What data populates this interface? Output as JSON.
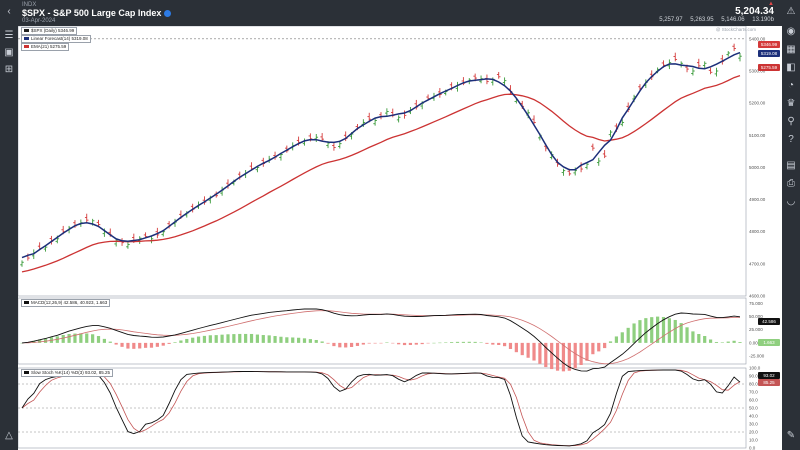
{
  "header": {
    "index_label": "INDX",
    "title": "$SPX - S&P 500 Large Cap Index",
    "date": "03-Apr-2024",
    "last_price": "5,204.34",
    "change": "▲",
    "stats": [
      "5,257.97",
      "5,263.95",
      "5,146.06",
      "13.190b"
    ]
  },
  "logo": "@ StockCharts.com",
  "legend": {
    "main": "$SPX (Daily) 5346.99",
    "linear": "Linear Forecast(14) 5319.08",
    "ema": "EMA(21) 5275.59"
  },
  "macd_label": "MACD(12,26,9) 42.586, 40.923, 1.663",
  "stoch_label": "Slow Stoch %K(14) %D(3) 93.02, 85.25",
  "colors": {
    "candle_up": "#3a9a3a",
    "candle_down": "#d43a3a",
    "linear": "#1c2f7a",
    "ema": "#cc3333",
    "hist_pos": "#8fcf7f",
    "hist_neg": "#f08a8a",
    "macd_signal": "#d07070",
    "stoch_k": "#111111",
    "stoch_d": "#c45555"
  },
  "price_axis": [
    "5400.00",
    "5300.00",
    "5200.00",
    "5100.00",
    "5000.00",
    "4900.00",
    "4800.00",
    "4700.00",
    "4600.00"
  ],
  "price_labels": [
    "5346.99",
    "5319.08",
    "5275.59"
  ],
  "macd_axis": [
    "75.000",
    "50.000",
    "25.000",
    "0.000",
    "-25.000"
  ],
  "macd_labels": [
    "42.586",
    "1.663"
  ],
  "stoch_axis": [
    "100.0",
    "90.0",
    "80.0",
    "70.0",
    "60.0",
    "50.0",
    "40.0",
    "30.0",
    "20.0",
    "10.0",
    "0.0"
  ],
  "stoch_labels": [
    "93.02",
    "85.25"
  ],
  "chart_data": {
    "type": "line",
    "price_range": [
      4600,
      5440
    ],
    "close": [
      4705,
      4718,
      4735,
      4748,
      4752,
      4770,
      4778,
      4800,
      4812,
      4818,
      4828,
      4836,
      4834,
      4822,
      4800,
      4790,
      4772,
      4766,
      4760,
      4773,
      4780,
      4785,
      4778,
      4790,
      4800,
      4818,
      4830,
      4846,
      4858,
      4870,
      4884,
      4892,
      4906,
      4912,
      4930,
      4944,
      4956,
      4970,
      4982,
      4996,
      5000,
      5012,
      5026,
      5032,
      5040,
      5052,
      5068,
      5078,
      5084,
      5089,
      5094,
      5088,
      5076,
      5062,
      5074,
      5090,
      5104,
      5122,
      5140,
      5150,
      5146,
      5158,
      5174,
      5162,
      5156,
      5162,
      5178,
      5188,
      5200,
      5214,
      5222,
      5227,
      5236,
      5248,
      5256,
      5262,
      5272,
      5278,
      5276,
      5267,
      5274,
      5282,
      5270,
      5236,
      5210,
      5190,
      5170,
      5140,
      5100,
      5060,
      5040,
      5010,
      4990,
      4980,
      4990,
      4995,
      5010,
      5060,
      5020,
      5035,
      5110,
      5120,
      5140,
      5180,
      5220,
      5246,
      5264,
      5282,
      5305,
      5318,
      5326,
      5336,
      5324,
      5306,
      5300,
      5316,
      5324,
      5296,
      5300,
      5330,
      5356,
      5370,
      5346
    ],
    "open_offsets": [
      -8,
      6,
      -10,
      7,
      -6,
      9,
      -8,
      6,
      -7,
      10,
      -5,
      8,
      -9,
      7,
      -6,
      8,
      -10,
      6,
      -7,
      9,
      -8,
      5,
      -6,
      10,
      -9,
      7,
      -5,
      8,
      -6,
      9,
      -7,
      6,
      -8,
      5,
      -10,
      7,
      -6,
      9,
      -5,
      8,
      -7,
      10,
      -6,
      5,
      -9,
      8,
      -7,
      6,
      -10,
      9,
      -5,
      7,
      -8,
      6,
      -9,
      10,
      -7,
      5,
      -6,
      8,
      -10,
      6,
      -5,
      9,
      -8,
      7,
      -6,
      10,
      -9,
      5,
      -7,
      8,
      -6,
      9,
      -10,
      7,
      -5,
      6,
      -8,
      10,
      -9,
      7,
      -6,
      8,
      -5,
      9,
      -7,
      10,
      -8,
      6,
      -9,
      5,
      -6,
      8,
      -7,
      9,
      -10,
      6,
      -5,
      7,
      -8,
      9,
      -6,
      10,
      -7,
      5,
      -9,
      8,
      -6,
      7,
      -10,
      9,
      -5,
      6,
      -8,
      10,
      -7,
      6,
      -9,
      8,
      -5,
      7,
      -6
    ]
  }
}
